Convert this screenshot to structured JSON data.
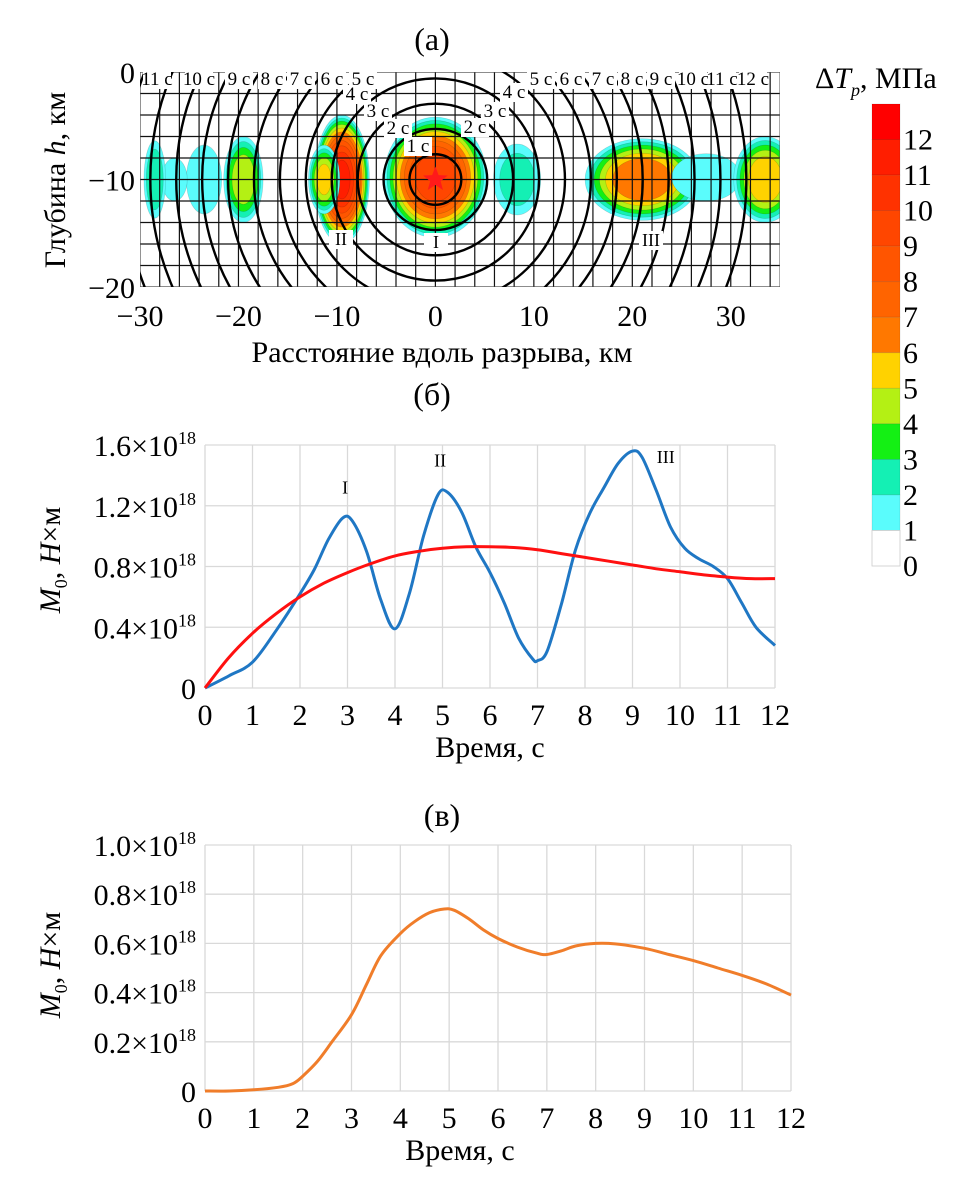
{
  "chart_data": [
    {
      "id": "a",
      "panel_label": "(а)",
      "type": "heatmap",
      "title": "",
      "xlabel": "Расстояние вдоль разрыва, км",
      "ylabel_prefix": "Глубина ",
      "ylabel_var": "h",
      "ylabel_suffix": ", км",
      "xlim": [
        -30,
        35
      ],
      "ylim": [
        -20,
        0
      ],
      "x_ticks": [
        -30,
        -20,
        -10,
        0,
        10,
        20,
        30
      ],
      "x_tick_labels": [
        "−30",
        "−20",
        "−10",
        "0",
        "10",
        "20",
        "30"
      ],
      "y_ticks": [
        0,
        -10,
        -20
      ],
      "y_tick_labels": [
        "0",
        "−10",
        "−20"
      ],
      "grid": true,
      "grid_step_km": 2,
      "hypocenter": {
        "x": 0,
        "y": -10,
        "marker": "star",
        "color": "#ff1a1a"
      },
      "isochrones_s": [
        1,
        2,
        3,
        4,
        5,
        6,
        7,
        8,
        9,
        10,
        11,
        12
      ],
      "rupture_velocity_km_per_s": 2.35,
      "isochrone_labels_left": [
        "11 c",
        "10 c",
        "9 c",
        "8 c",
        "7 c",
        "6 c",
        "5 c",
        "4 c",
        "3 c",
        "2 c",
        "1 c"
      ],
      "isochrone_labels_right": [
        "2 c",
        "3 c",
        "4 c",
        "5 c",
        "6 c",
        "7 c",
        "8 c",
        "9 c",
        "10 c",
        "11 c",
        "12 c"
      ],
      "asperities": [
        {
          "label": "I",
          "x": 0,
          "y": -10,
          "peak": 9
        },
        {
          "label": "II",
          "x": -9.5,
          "y": -10,
          "peak": 11
        },
        {
          "label": "III",
          "x": 21,
          "y": -10,
          "peak": 7
        }
      ],
      "stress_patches": [
        {
          "x": 0,
          "y": -9.8,
          "rx": 5.2,
          "ry": 5.6,
          "peak": 9.5
        },
        {
          "x": -9.5,
          "y": -10,
          "rx": 2.8,
          "ry": 6.0,
          "peak": 11
        },
        {
          "x": -11.3,
          "y": -10,
          "rx": 1.6,
          "ry": 3.2,
          "peak": 5
        },
        {
          "x": 8.3,
          "y": -10,
          "rx": 2.4,
          "ry": 3.3,
          "peak": 2.2
        },
        {
          "x": -19.5,
          "y": -10,
          "rx": 2.0,
          "ry": 4.0,
          "peak": 4.5
        },
        {
          "x": -23.5,
          "y": -10,
          "rx": 1.8,
          "ry": 3.2,
          "peak": 1.6
        },
        {
          "x": -26.5,
          "y": -10,
          "rx": 1.3,
          "ry": 2.0,
          "peak": 1.3
        },
        {
          "x": -28.5,
          "y": -10,
          "rx": 1.1,
          "ry": 3.6,
          "peak": 2.6
        },
        {
          "x": 21,
          "y": -10,
          "rx": 5.8,
          "ry": 3.8,
          "peak": 6.8
        },
        {
          "x": 27.5,
          "y": -9.8,
          "rx": 3.5,
          "ry": 2.2,
          "peak": 1.3
        },
        {
          "x": 33.5,
          "y": -10,
          "rx": 3.2,
          "ry": 4.0,
          "peak": 5.6
        }
      ],
      "colorbar": {
        "title_delta": "Δ",
        "title_var": "T",
        "title_sub": "p",
        "title_unit": ", МПа",
        "levels": [
          0,
          1,
          2,
          3,
          4,
          5,
          6,
          7,
          8,
          9,
          10,
          11,
          12
        ],
        "level_labels": [
          "0",
          "1",
          "2",
          "3",
          "4",
          "5",
          "6",
          "7",
          "8",
          "9",
          "10",
          "11",
          "12"
        ],
        "colors": [
          "#ffffff",
          "#5afcfc",
          "#14f0b4",
          "#14f014",
          "#b4f014",
          "#ffd200",
          "#ff7800",
          "#ff6400",
          "#ff5500",
          "#ff4600",
          "#ff3200",
          "#ff1e00",
          "#ff0000"
        ]
      }
    },
    {
      "id": "b",
      "panel_label": "(б)",
      "type": "line",
      "title": "",
      "xlabel": "Время, с",
      "ylabel_var": "M",
      "ylabel_sub": "0",
      "ylabel_rest": ", ",
      "ylabel_var2": "H",
      "ylabel_unit": "×м",
      "xlim": [
        0,
        12
      ],
      "ylim": [
        0,
        1.6e+18
      ],
      "x_ticks": [
        0,
        1,
        2,
        3,
        4,
        5,
        6,
        7,
        8,
        9,
        10,
        11,
        12
      ],
      "y_ticks": [
        0,
        4e+17,
        8e+17,
        1.2e+18,
        1.6e+18
      ],
      "y_tick_mantissas": [
        "0",
        "0.4",
        "0.8",
        "1.2",
        "1.6"
      ],
      "y_tick_exponent": "18",
      "grid": true,
      "annotations": [
        {
          "text": "I",
          "x": 2.95,
          "y": 1.28e+18
        },
        {
          "text": "II",
          "x": 4.95,
          "y": 1.46e+18
        },
        {
          "text": "III",
          "x": 9.7,
          "y": 1.48e+18
        }
      ],
      "series": [
        {
          "name": "moment-rate-model",
          "color": "#1f77c4",
          "x": [
            0,
            0.5,
            1,
            1.5,
            2,
            2.3,
            2.6,
            2.9,
            3.1,
            3.4,
            3.7,
            4.0,
            4.3,
            4.6,
            4.9,
            5.1,
            5.4,
            5.7,
            6.0,
            6.3,
            6.6,
            6.9,
            7.0,
            7.2,
            7.5,
            7.8,
            8.1,
            8.4,
            8.7,
            9.0,
            9.2,
            9.5,
            9.8,
            10.1,
            10.4,
            10.7,
            11.0,
            11.3,
            11.6,
            12.0
          ],
          "y": [
            0,
            8e+16,
            1.7e+17,
            3.8e+17,
            6.2e+17,
            7.8e+17,
            9.8e+17,
            1.12e+18,
            1.1e+18,
            9e+17,
            5.8e+17,
            3.9e+17,
            6.2e+17,
            1e+18,
            1.27e+18,
            1.29e+18,
            1.16e+18,
            9.3e+17,
            7.6e+17,
            5.6e+17,
            3.3e+17,
            1.9e+17,
            1.8e+17,
            2.4e+17,
            5.5e+17,
            9.1e+17,
            1.15e+18,
            1.32e+18,
            1.48e+18,
            1.56e+18,
            1.52e+18,
            1.3e+18,
            1.06e+18,
            9.2e+17,
            8.5e+17,
            8e+17,
            7.2e+17,
            5.6e+17,
            4e+17,
            2.8e+17
          ]
        },
        {
          "name": "moment-rate-smooth",
          "color": "#ff1010",
          "x": [
            0,
            0.5,
            1,
            1.5,
            2,
            2.5,
            3,
            3.5,
            4,
            4.5,
            5,
            5.5,
            6,
            6.5,
            7,
            7.5,
            8,
            8.5,
            9,
            9.5,
            10,
            10.5,
            11,
            11.5,
            12
          ],
          "y": [
            0,
            2e+17,
            3.6e+17,
            4.9e+17,
            6e+17,
            6.9e+17,
            7.6e+17,
            8.2e+17,
            8.7e+17,
            9e+17,
            9.2e+17,
            9.3e+17,
            9.3e+17,
            9.25e+17,
            9.1e+17,
            8.85e+17,
            8.6e+17,
            8.35e+17,
            8.1e+17,
            7.85e+17,
            7.65e+17,
            7.45e+17,
            7.3e+17,
            7.2e+17,
            7.2e+17
          ]
        }
      ]
    },
    {
      "id": "c",
      "panel_label": "(в)",
      "type": "line",
      "title": "",
      "xlabel": "Время, с",
      "ylabel_var": "M",
      "ylabel_sub": "0",
      "ylabel_rest": ", ",
      "ylabel_var2": "H",
      "ylabel_unit": "×м",
      "xlim": [
        0,
        12
      ],
      "ylim": [
        0,
        1e+18
      ],
      "x_ticks": [
        0,
        1,
        2,
        3,
        4,
        5,
        6,
        7,
        8,
        9,
        10,
        11,
        12
      ],
      "y_ticks": [
        0,
        2e+17,
        4e+17,
        6e+17,
        8e+17,
        1e+18
      ],
      "y_tick_mantissas": [
        "0",
        "0.2",
        "0.4",
        "0.6",
        "0.8",
        "1.0"
      ],
      "y_tick_exponent": "18",
      "grid": true,
      "series": [
        {
          "name": "moment-rate-observed",
          "color": "#f07d2a",
          "x": [
            0,
            0.5,
            1,
            1.5,
            1.8,
            2,
            2.3,
            2.6,
            3,
            3.3,
            3.6,
            4,
            4.3,
            4.6,
            4.9,
            5.1,
            5.4,
            5.7,
            6,
            6.4,
            6.8,
            7.0,
            7.3,
            7.6,
            8.0,
            8.4,
            9.0,
            9.5,
            10,
            10.5,
            11,
            11.5,
            12
          ],
          "y": [
            0,
            0,
            5000000000000000.0,
            1.5e+16,
            3e+16,
            6e+16,
            1.2e+17,
            2e+17,
            3.1e+17,
            4.3e+17,
            5.5e+17,
            6.4e+17,
            6.9e+17,
            7.25e+17,
            7.4e+17,
            7.35e+17,
            7e+17,
            6.55e+17,
            6.2e+17,
            5.85e+17,
            5.6e+17,
            5.55e+17,
            5.7e+17,
            5.9e+17,
            6e+17,
            5.98e+17,
            5.8e+17,
            5.55e+17,
            5.3e+17,
            5e+17,
            4.7e+17,
            4.35e+17,
            3.9e+17
          ]
        }
      ]
    }
  ]
}
